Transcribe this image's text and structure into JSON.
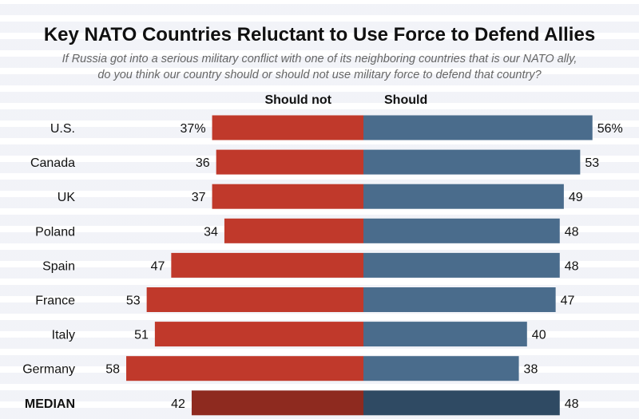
{
  "chart_data": {
    "type": "bar",
    "orientation": "horizontal-diverging",
    "title": "Key NATO Countries Reluctant to Use Force to Defend Allies",
    "subtitle_lines": [
      "If Russia got into a serious military conflict with one of its neighboring countries that is our NATO ally,",
      "do you think our country should or should not use military force to defend that country?"
    ],
    "categories": [
      "U.S.",
      "Canada",
      "UK",
      "Poland",
      "Spain",
      "France",
      "Italy",
      "Germany",
      "MEDIAN"
    ],
    "series": [
      {
        "name": "Should not",
        "values": [
          37,
          36,
          37,
          34,
          47,
          53,
          51,
          58,
          42
        ],
        "labels": [
          "37%",
          "36",
          "37",
          "34",
          "47",
          "53",
          "51",
          "58",
          "42"
        ],
        "color": "#c0392b",
        "median_color": "#8e2a1f"
      },
      {
        "name": "Should",
        "values": [
          56,
          53,
          49,
          48,
          48,
          47,
          40,
          38,
          48
        ],
        "labels": [
          "56%",
          "53",
          "49",
          "48",
          "48",
          "47",
          "40",
          "38",
          "48"
        ],
        "color": "#4a6c8c",
        "median_color": "#2f4a63"
      }
    ],
    "emphasized_category": "MEDIAN",
    "unit": "%",
    "xlim": [
      -60,
      60
    ]
  }
}
